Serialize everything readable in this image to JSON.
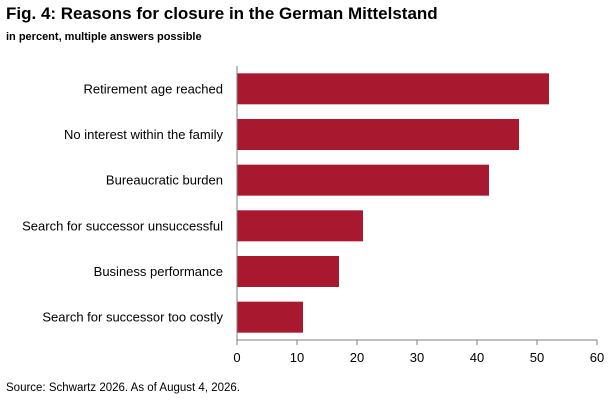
{
  "figure": {
    "title": "Fig. 4: Reasons for closure in the German Mittelstand",
    "subtitle": "in percent, multiple answers possible",
    "source": "Source: Schwartz 2026. As of August 4, 2026."
  },
  "chart_data": {
    "type": "bar",
    "orientation": "horizontal",
    "title": "Fig. 4: Reasons for closure in the German Mittelstand",
    "subtitle": "in percent, multiple answers possible",
    "xlabel": "",
    "ylabel": "",
    "categories": [
      "Retirement age reached",
      "No interest within the family",
      "Bureaucratic burden",
      "Search for successor unsuccessful",
      "Business performance",
      "Search for successor too costly"
    ],
    "values": [
      52,
      47,
      42,
      21,
      17,
      11
    ],
    "xlim": [
      0,
      60
    ],
    "xticks": [
      "0",
      "10",
      "20",
      "30",
      "40",
      "50",
      "60"
    ],
    "grid": false,
    "legend": "none",
    "bar_color": "#a8182e",
    "axis_color": "#7f7f7f"
  }
}
